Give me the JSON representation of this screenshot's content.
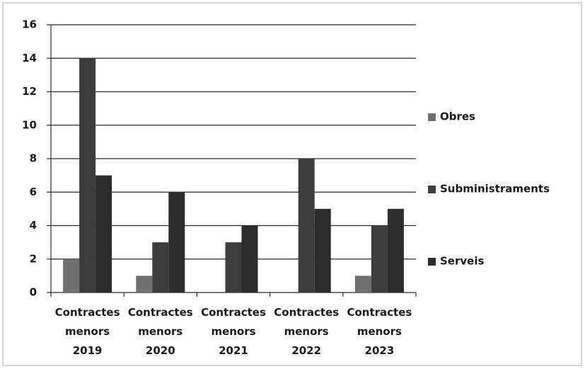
{
  "chart_data": {
    "type": "bar",
    "categories": [
      "Contractes menors 2019",
      "Contractes menors 2020",
      "Contractes menors 2021",
      "Contractes menors 2022",
      "Contractes menors 2023"
    ],
    "series": [
      {
        "name": "Obres",
        "color": "#707070",
        "values": [
          2,
          1,
          0,
          0,
          1
        ]
      },
      {
        "name": "Subministraments",
        "color": "#3c3c3c",
        "values": [
          14,
          3,
          3,
          8,
          4
        ]
      },
      {
        "name": "Serveis",
        "color": "#2c2c2c",
        "values": [
          7,
          6,
          4,
          5,
          5
        ]
      }
    ],
    "ylim": [
      0,
      16
    ],
    "yticks": [
      0,
      2,
      4,
      6,
      8,
      10,
      12,
      14,
      16
    ],
    "grid": true,
    "legend": "right"
  }
}
